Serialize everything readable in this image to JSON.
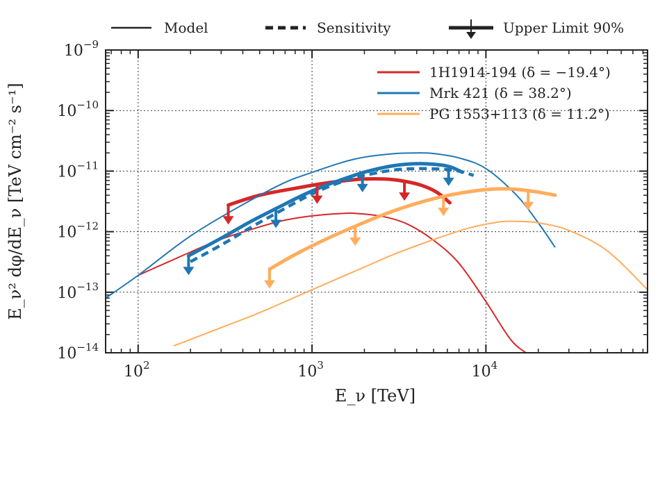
{
  "chart_data": {
    "type": "line",
    "xlabel": "E_ν [TeV]",
    "ylabel": "E_ν² dφ/dE_ν [TeV cm⁻² s⁻¹]",
    "xscale": "log",
    "yscale": "log",
    "xlim": [
      65,
      85000
    ],
    "ylim": [
      1e-14,
      1e-09
    ],
    "grid": true,
    "x_ticks": [
      {
        "base": "10",
        "exp": "2",
        "value": 100
      },
      {
        "base": "10",
        "exp": "3",
        "value": 1000
      },
      {
        "base": "10",
        "exp": "4",
        "value": 10000
      }
    ],
    "y_ticks": [
      {
        "base": "10",
        "exp": "−9",
        "value": 1e-09
      },
      {
        "base": "10",
        "exp": "−10",
        "value": 1e-10
      },
      {
        "base": "10",
        "exp": "−11",
        "value": 1e-11
      },
      {
        "base": "10",
        "exp": "−12",
        "value": 1e-12
      },
      {
        "base": "10",
        "exp": "−13",
        "value": 1e-13
      },
      {
        "base": "10",
        "exp": "−14",
        "value": 1e-14
      }
    ],
    "style_key": [
      {
        "label": "Model",
        "style": "solid"
      },
      {
        "label": "Sensitivity",
        "style": "dashed"
      },
      {
        "label": "Upper Limit 90%",
        "style": "arrow"
      }
    ],
    "legend_position": "top-right",
    "series": [
      {
        "name": "1H1914-194 (δ = −19.4°)",
        "color": "#d62728",
        "model": {
          "x": [
            100,
            150,
            200,
            300,
            500,
            700,
            1000,
            1500,
            1800,
            2500,
            3500,
            5000,
            7000,
            10000,
            14000,
            18000
          ],
          "y": [
            1.9e-13,
            3.2e-13,
            4.6e-13,
            7.5e-13,
            1.2e-12,
            1.55e-12,
            1.82e-12,
            2e-12,
            2e-12,
            1.8e-12,
            1.35e-12,
            7.2e-13,
            3e-13,
            7e-14,
            1.6e-14,
            9e-15
          ]
        },
        "upper_limit": {
          "x": [
            330,
            500,
            800,
            1100,
            1500,
            2000,
            2600,
            3300,
            4200,
            5200,
            6200
          ],
          "y": [
            2.75e-12,
            4e-12,
            5.2e-12,
            6.1e-12,
            6.9e-12,
            7.4e-12,
            7.4e-12,
            6.9e-12,
            5.9e-12,
            4.5e-12,
            3e-12
          ]
        },
        "arrows_x": [
          330,
          1070,
          3400
        ]
      },
      {
        "name": "Mrk 421 (δ = 38.2°)",
        "color": "#1f77b4",
        "model": {
          "x": [
            65,
            100,
            200,
            400,
            700,
            1000,
            1500,
            2000,
            3000,
            4000,
            5000,
            7000,
            10000,
            15000,
            20000,
            25000
          ],
          "y": [
            8e-14,
            1.9e-13,
            8.5e-13,
            2.8e-12,
            6.5e-12,
            9.5e-12,
            1.4e-11,
            1.7e-11,
            1.95e-11,
            2e-11,
            1.95e-11,
            1.65e-11,
            1.1e-11,
            4e-12,
            1.4e-12,
            5.5e-13
          ]
        },
        "sensitivity": {
          "x": [
            200,
            300,
            450,
            600,
            800,
            1000,
            1300,
            1700,
            2200,
            3000,
            4000,
            5500,
            7000,
            8500
          ],
          "y": [
            3.2e-13,
            6e-13,
            1.2e-12,
            1.9e-12,
            3e-12,
            4.2e-12,
            5.8e-12,
            7.6e-12,
            9e-12,
            1.05e-11,
            1.1e-11,
            1.08e-11,
            1e-11,
            8.5e-12
          ]
        },
        "upper_limit": {
          "x": [
            195,
            300,
            450,
            620,
            900,
            1200,
            1600,
            2000,
            2800,
            3800,
            5000,
            6200,
            7300
          ],
          "y": [
            4e-13,
            7.8e-13,
            1.5e-12,
            2.4e-12,
            4.1e-12,
            5.8e-12,
            7.8e-12,
            9.6e-12,
            1.2e-11,
            1.32e-11,
            1.3e-11,
            1.18e-11,
            9.6e-12
          ]
        },
        "arrows_x": [
          195,
          620,
          1950,
          6100
        ]
      },
      {
        "name": "PG 1553+113 (δ = 11.2°)",
        "color": "#ffad5c",
        "model": {
          "x": [
            160,
            300,
            500,
            1000,
            2000,
            3000,
            5000,
            8000,
            12000,
            15000,
            20000,
            30000,
            50000,
            85000
          ],
          "y": [
            1.3e-14,
            2.6e-14,
            4.6e-14,
            1.1e-13,
            2.6e-13,
            4.3e-13,
            7.4e-13,
            1.15e-12,
            1.45e-12,
            1.48e-12,
            1.4e-12,
            1.05e-12,
            4.8e-13,
            1.1e-13
          ]
        },
        "upper_limit": {
          "x": [
            570,
            800,
            1200,
            1800,
            2500,
            3500,
            5000,
            7000,
            10000,
            13000,
            16000,
            20000,
            25000
          ],
          "y": [
            2.4e-13,
            4.2e-13,
            7.5e-13,
            1.25e-12,
            1.85e-12,
            2.6e-12,
            3.5e-12,
            4.3e-12,
            4.95e-12,
            5.1e-12,
            4.9e-12,
            4.5e-12,
            4e-12
          ]
        },
        "arrows_x": [
          570,
          1770,
          5700,
          17500
        ]
      }
    ]
  }
}
